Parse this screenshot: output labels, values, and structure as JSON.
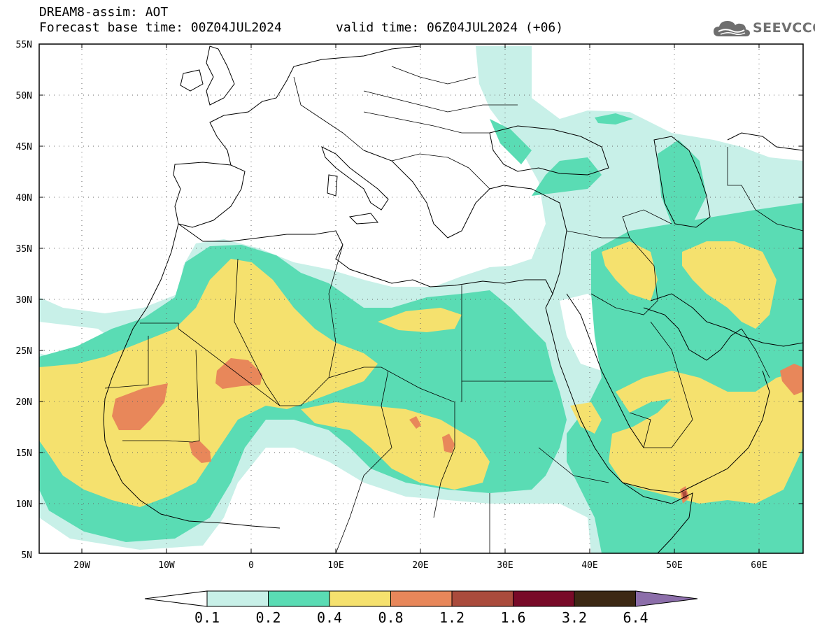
{
  "header": {
    "line1": "DREAM8-assim: AOT",
    "line2": "Forecast base time: 00Z04JUL2024",
    "line3": "valid time: 06Z04JUL2024 (+06)"
  },
  "logo": {
    "text": "SEEVCCC",
    "icon": "cloud-icon"
  },
  "map": {
    "lon_range": [
      -25,
      65
    ],
    "lat_range": [
      5,
      55
    ],
    "lat_labels": [
      "55N",
      "50N",
      "45N",
      "40N",
      "35N",
      "30N",
      "25N",
      "20N",
      "15N",
      "10N",
      "5N"
    ],
    "lon_labels": [
      "20W",
      "10W",
      "0",
      "10E",
      "20E",
      "30E",
      "40E",
      "50E",
      "60E"
    ],
    "grid": "dotted"
  },
  "legend": {
    "labels": [
      "0.1",
      "0.2",
      "0.4",
      "0.8",
      "1.2",
      "1.6",
      "3.2",
      "6.4"
    ],
    "colors": {
      "below": "#ffffff",
      "c1": "#c8f0e8",
      "c2": "#5adcb4",
      "c3": "#f5e16e",
      "c4": "#e8875a",
      "c5": "#aa4b3c",
      "c6": "#780a28",
      "c7": "#3c2814",
      "above": "#8c6eaa"
    }
  }
}
